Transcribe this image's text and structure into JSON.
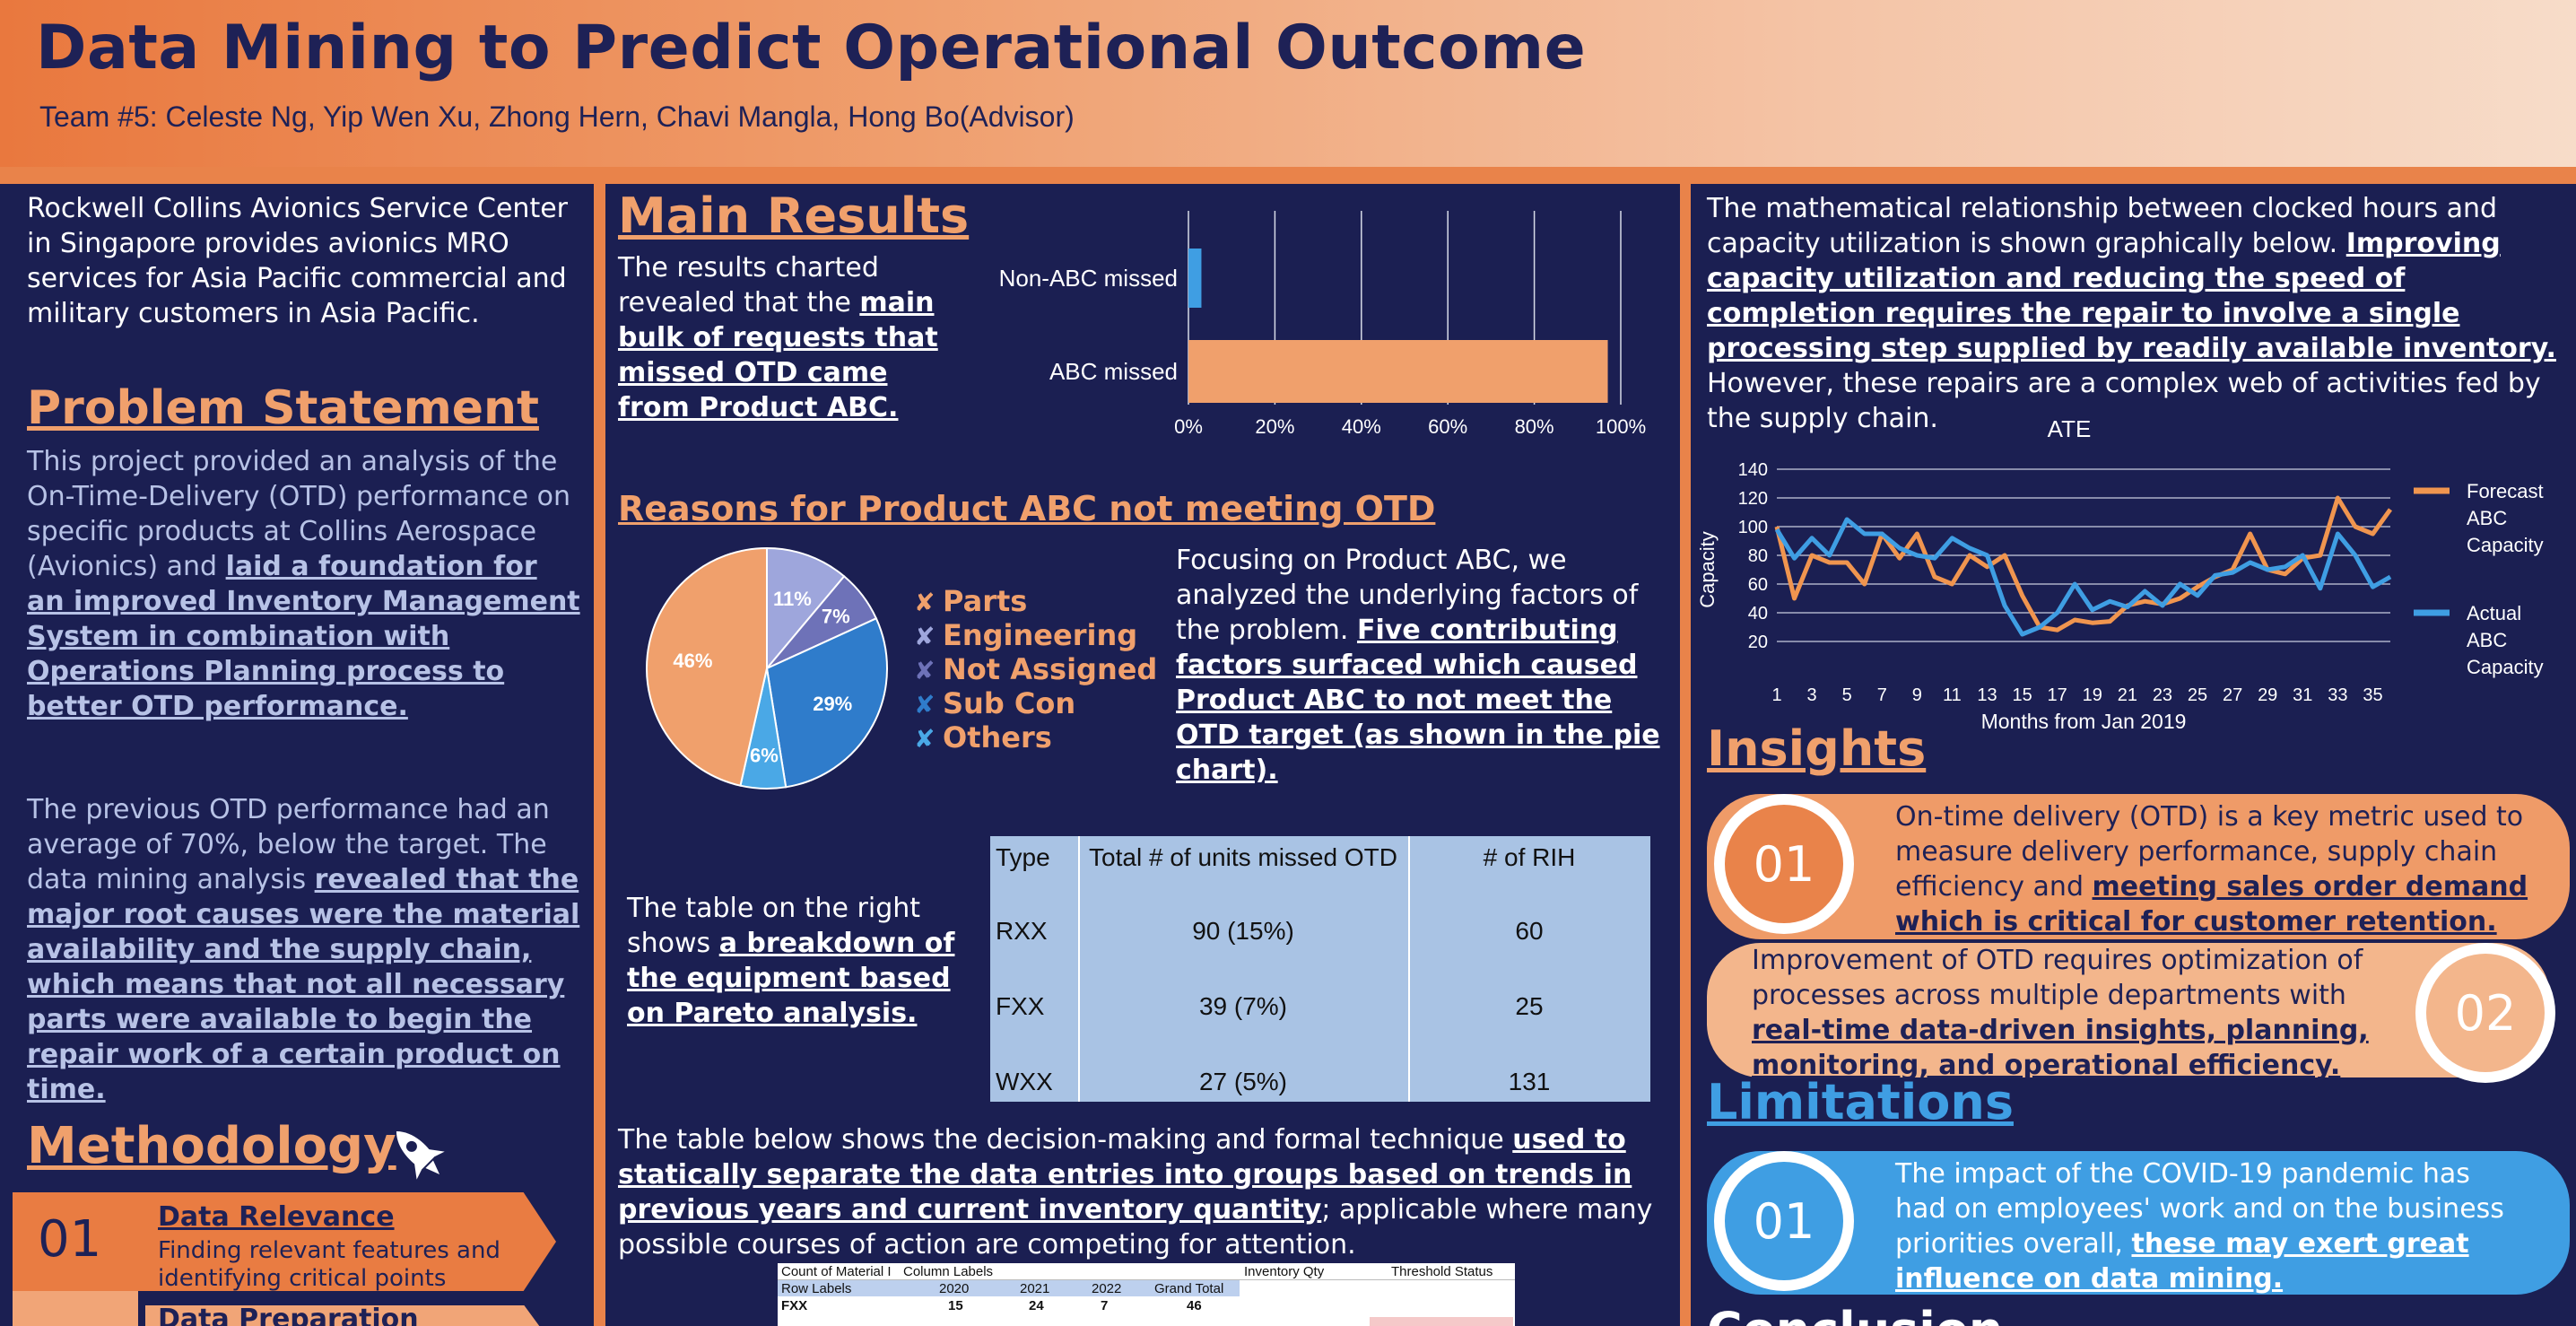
{
  "header": {
    "title": "Data Mining to Predict Operational Outcome",
    "team": "Team #5: Celeste Ng, Yip Wen Xu, Zhong Hern, Chavi Mangla, Hong Bo(Advisor)"
  },
  "left": {
    "intro": "Rockwell Collins Avionics Service Center in Singapore provides avionics MRO services for Asia Pacific commercial and military customers in Asia Pacific.",
    "problem_heading": "Problem Statement",
    "problem_p1": "This project provided an analysis of the On-Time-Delivery (OTD) performance on specific products at Collins Aerospace (Avionics) and ",
    "problem_p1_hl": "laid a foundation for an improved Inventory Management System in combination with Operations Planning process to better OTD performance.",
    "problem_p2": "The previous OTD performance had an average of 70%, below the target. The data mining analysis ",
    "problem_p2_hl": "revealed that the major root causes were the material availability and the supply chain, which means that not all necessary parts were available to begin the repair work of a certain product on time.",
    "method_heading": "Methodology",
    "steps": [
      {
        "num": "01",
        "title": "Data Relevance",
        "desc": "Finding relevant features and identifying critical points"
      },
      {
        "num": "",
        "title": "Data Preparation",
        "desc": ""
      }
    ]
  },
  "middle": {
    "main_heading": "Main Results",
    "main_text": "The results charted revealed that the ",
    "main_text_hl": "main bulk of requests that missed OTD came from Product ABC.",
    "reasons_heading": "Reasons for Product ABC not meeting OTD",
    "focus_text": "Focusing on Product ABC, we analyzed the underlying factors of the problem. ",
    "focus_hl": "Five contributing factors surfaced which caused Product ABC to not meet the OTD target (as shown in the pie chart).",
    "table_text": "The table on the right shows ",
    "table_text_hl": "a breakdown of the equipment based on Pareto analysis.",
    "bottom_text": "The table below shows the decision-making and formal technique ",
    "bottom_hl": "used to statically separate the data entries into groups based on trends in previous years and current inventory quantity",
    "bottom_text2": "; applicable where many possible courses of action are competing for attention.",
    "rih_table": {
      "headers": [
        "Type",
        "Total # of units missed OTD",
        "# of RIH"
      ],
      "rows": [
        [
          "RXX",
          "90 (15%)",
          "60"
        ],
        [
          "FXX",
          "39 (7%)",
          "25"
        ],
        [
          "WXX",
          "27 (5%)",
          "131"
        ]
      ]
    },
    "small_table": {
      "row1": [
        "Count of Material I",
        "Column Labels",
        "",
        "",
        "",
        "Inventory Qty",
        "Threshold Status"
      ],
      "row2": [
        "Row Labels",
        "2020",
        "2021",
        "2022",
        "Grand Total"
      ],
      "row3": [
        "FXX",
        "15",
        "24",
        "7",
        "46"
      ]
    }
  },
  "right": {
    "intro": "The mathematical relationship between clocked hours and capacity utilization is shown graphically below. ",
    "intro_hl": "Improving capacity utilization and reducing the speed of completion requires the repair to involve a single processing step supplied by readily available inventory.",
    "intro2": " However, these repairs are a complex web of activities fed by the supply chain.",
    "insights_heading": "Insights",
    "insight1_num": "01",
    "insight1": "On-time delivery (OTD) is a key metric used to measure delivery performance, supply chain efficiency and ",
    "insight1_hl": "meeting sales order demand which is critical for customer retention.",
    "insight2_num": "02",
    "insight2": "Improvement of OTD requires optimization of processes across multiple departments with ",
    "insight2_hl": "real-time data-driven insights, planning, monitoring, and operational efficiency.",
    "limitations_heading": "Limitations",
    "limit1_num": "01",
    "limit1": "The impact of the COVID-19 pandemic has had on employees' work and on the business priorities overall, ",
    "limit1_hl": "these may exert great influence on data mining.",
    "conclusion_heading": "Conclusion"
  },
  "chart_data": [
    {
      "type": "bar",
      "orientation": "horizontal",
      "categories": [
        "Non-ABC missed",
        "ABC missed"
      ],
      "values": [
        3,
        97
      ],
      "colors": [
        "#3f9ee3",
        "#f0a06c"
      ],
      "xlim": [
        0,
        100
      ],
      "xticks": [
        "0%",
        "20%",
        "40%",
        "60%",
        "80%",
        "100%"
      ],
      "grid": true
    },
    {
      "type": "pie",
      "slices": [
        {
          "label": "Parts",
          "value": 46,
          "text": "46%",
          "color": "#f0a06c"
        },
        {
          "label": "Engineering",
          "value": 11,
          "text": "11%",
          "color": "#9ea6dc"
        },
        {
          "label": "Not Assigned",
          "value": 7,
          "text": "7%",
          "color": "#6e72b8"
        },
        {
          "label": "Sub Con",
          "value": 29,
          "text": "29%",
          "color": "#2f7ccb"
        },
        {
          "label": "Others",
          "value": 6,
          "text": "6%",
          "color": "#4aa8e6"
        }
      ],
      "legend_placement": "right"
    },
    {
      "type": "line",
      "title": "ATE",
      "xlabel": "Months from Jan 2019",
      "ylabel": "Capacity",
      "ylim": [
        0,
        140
      ],
      "yticks": [
        20,
        40,
        60,
        80,
        100,
        120,
        140
      ],
      "xticks": [
        1,
        3,
        5,
        7,
        9,
        11,
        13,
        15,
        17,
        19,
        21,
        23,
        25,
        27,
        29,
        31,
        33,
        35
      ],
      "x": [
        1,
        2,
        3,
        4,
        5,
        6,
        7,
        8,
        9,
        10,
        11,
        12,
        13,
        14,
        15,
        16,
        17,
        18,
        19,
        20,
        21,
        22,
        23,
        24,
        25,
        26,
        27,
        28,
        29,
        30,
        31,
        32,
        33,
        34,
        35,
        36
      ],
      "series": [
        {
          "name": "Forecast ABC Capacity",
          "color": "#f0954f",
          "values": [
            100,
            50,
            80,
            75,
            75,
            60,
            95,
            78,
            95,
            65,
            60,
            80,
            72,
            80,
            52,
            30,
            28,
            35,
            33,
            34,
            45,
            48,
            46,
            50,
            58,
            65,
            70,
            95,
            70,
            67,
            78,
            80,
            120,
            100,
            95,
            112
          ]
        },
        {
          "name": "Actual ABC Capacity",
          "color": "#3f9ee3",
          "values": [
            98,
            78,
            92,
            80,
            105,
            95,
            95,
            85,
            80,
            78,
            92,
            85,
            80,
            45,
            25,
            30,
            40,
            60,
            42,
            48,
            44,
            55,
            45,
            60,
            52,
            66,
            68,
            75,
            70,
            72,
            80,
            57,
            95,
            80,
            58,
            65
          ]
        }
      ],
      "legend_placement": "right",
      "grid": true
    }
  ]
}
